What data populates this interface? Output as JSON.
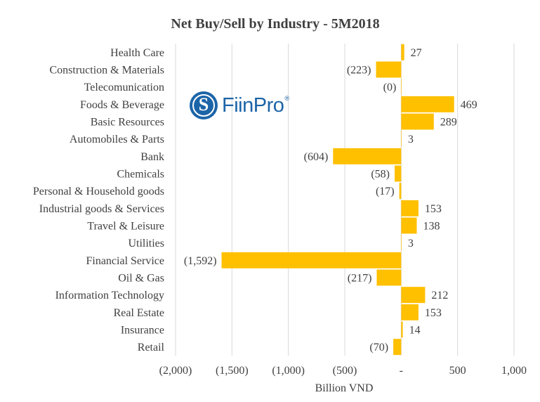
{
  "logo": {
    "icon": "fiinpro-s-seal-icon",
    "text": "FiinPro",
    "mark": "®",
    "color": "#1c64a8"
  },
  "chart_data": {
    "type": "bar",
    "orientation": "horizontal",
    "title": "Net Buy/Sell by Industry - 5M2018",
    "xlabel": "Billion VND",
    "ylabel": "",
    "xlim": [
      -2000,
      1000
    ],
    "x_ticks": [
      -2000,
      -1500,
      -1000,
      -500,
      0,
      500,
      1000
    ],
    "x_tick_labels": [
      "(2,000)",
      "(1,500)",
      "(1,000)",
      "(500)",
      "-",
      "500",
      "1,000"
    ],
    "grid": "vertical",
    "bar_color": "#ffc000",
    "categories": [
      "Health Care",
      "Construction & Materials",
      "Telecomunication",
      "Foods & Beverage",
      "Basic Resources",
      "Automobiles & Parts",
      "Bank",
      "Chemicals",
      "Personal & Household goods",
      "Industrial goods & Services",
      "Travel & Leisure",
      "Utilities",
      "Financial Service",
      "Oil & Gas",
      "Information Technology",
      "Real Estate",
      "Insurance",
      "Retail"
    ],
    "values": [
      27,
      -223,
      -0.2,
      469,
      289,
      3,
      -604,
      -58,
      -17,
      153,
      138,
      3,
      -1592,
      -217,
      212,
      153,
      14,
      -70
    ],
    "data_labels": [
      "27",
      "(223)",
      "(0)",
      "469",
      "289",
      "3",
      "(604)",
      "(58)",
      "(17)",
      "153",
      "138",
      "3",
      "(1,592)",
      "(217)",
      "212",
      "153",
      "14",
      "(70)"
    ]
  }
}
